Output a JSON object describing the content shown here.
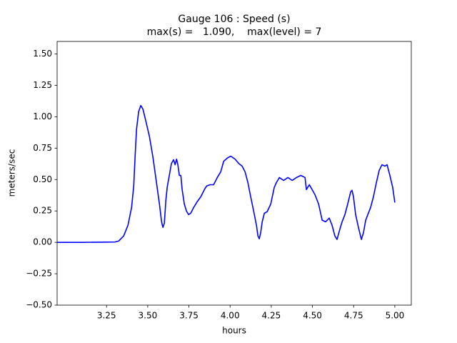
{
  "chart_data": {
    "type": "line",
    "title": "Gauge 106 : Speed (s)",
    "subtitle": "max(s) =   1.090,    max(level) = 7",
    "xlabel": "hours",
    "ylabel": "meters/sec",
    "color": "#0000ff",
    "x": [
      2.95,
      3.1,
      3.25,
      3.302,
      3.324,
      3.354,
      3.38,
      3.402,
      3.415,
      3.423,
      3.432,
      3.445,
      3.458,
      3.471,
      3.488,
      3.51,
      3.532,
      3.553,
      3.571,
      3.584,
      3.592,
      3.601,
      3.61,
      3.618,
      3.631,
      3.644,
      3.657,
      3.666,
      3.675,
      3.683,
      3.692,
      3.701,
      3.709,
      3.722,
      3.735,
      3.748,
      3.761,
      3.779,
      3.8,
      3.822,
      3.844,
      3.857,
      3.878,
      3.9,
      3.922,
      3.943,
      3.961,
      3.987,
      4.004,
      4.03,
      4.052,
      4.073,
      4.091,
      4.108,
      4.125,
      4.143,
      4.16,
      4.169,
      4.177,
      4.186,
      4.195,
      4.208,
      4.225,
      4.247,
      4.268,
      4.281,
      4.299,
      4.325,
      4.351,
      4.377,
      4.403,
      4.429,
      4.455,
      4.463,
      4.481,
      4.498,
      4.515,
      4.537,
      4.559,
      4.58,
      4.602,
      4.619,
      4.636,
      4.649,
      4.667,
      4.68,
      4.697,
      4.714,
      4.732,
      4.74,
      4.749,
      4.762,
      4.779,
      4.797,
      4.81,
      4.823,
      4.836,
      4.853,
      4.87,
      4.888,
      4.905,
      4.922,
      4.94,
      4.953,
      4.97,
      4.987,
      5.0
    ],
    "values": [
      0.0,
      0.0,
      0.002,
      0.003,
      0.011,
      0.051,
      0.136,
      0.278,
      0.448,
      0.675,
      0.901,
      1.043,
      1.09,
      1.06,
      0.969,
      0.845,
      0.675,
      0.476,
      0.306,
      0.164,
      0.119,
      0.153,
      0.334,
      0.437,
      0.533,
      0.629,
      0.658,
      0.618,
      0.663,
      0.618,
      0.533,
      0.533,
      0.42,
      0.306,
      0.249,
      0.221,
      0.232,
      0.278,
      0.323,
      0.363,
      0.42,
      0.448,
      0.459,
      0.459,
      0.516,
      0.561,
      0.646,
      0.675,
      0.686,
      0.663,
      0.629,
      0.607,
      0.561,
      0.476,
      0.363,
      0.249,
      0.136,
      0.051,
      0.028,
      0.079,
      0.164,
      0.232,
      0.244,
      0.306,
      0.437,
      0.476,
      0.516,
      0.493,
      0.516,
      0.493,
      0.516,
      0.533,
      0.516,
      0.42,
      0.459,
      0.42,
      0.38,
      0.306,
      0.176,
      0.164,
      0.193,
      0.136,
      0.051,
      0.023,
      0.108,
      0.164,
      0.221,
      0.306,
      0.402,
      0.414,
      0.363,
      0.221,
      0.119,
      0.023,
      0.079,
      0.176,
      0.221,
      0.278,
      0.363,
      0.476,
      0.573,
      0.618,
      0.607,
      0.618,
      0.533,
      0.437,
      0.317
    ],
    "xlim": [
      2.95,
      5.1
    ],
    "ylim": [
      -0.5,
      1.6
    ],
    "xticks": [
      3.25,
      {
        "value": 3.5,
        "label": "3.50"
      },
      3.75,
      {
        "value": 4,
        "label": "4.00"
      },
      4.25,
      {
        "value": 4.5,
        "label": "4.50"
      },
      4.75,
      {
        "value": 5,
        "label": "5.00"
      }
    ],
    "yticks": [
      {
        "value": -0.5,
        "label": "−0.50"
      },
      {
        "value": -0.25,
        "label": "−0.25"
      },
      {
        "value": 0,
        "label": "0.00"
      },
      0.25,
      {
        "value": 0.5,
        "label": "0.50"
      },
      0.75,
      {
        "value": 1,
        "label": "1.00"
      },
      1.25,
      {
        "value": 1.5,
        "label": "1.50"
      }
    ],
    "grid": false
  }
}
